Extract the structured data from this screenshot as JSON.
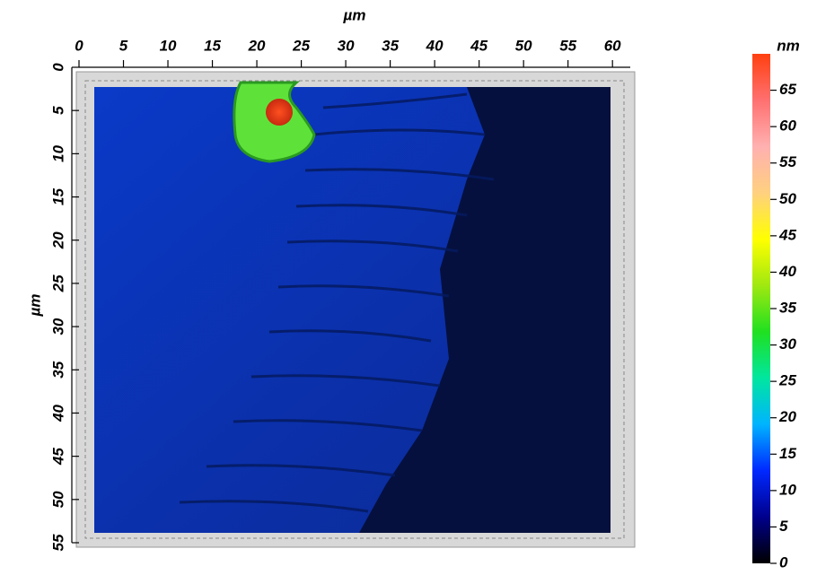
{
  "chart_data": {
    "type": "image",
    "xlabel": "µm",
    "ylabel": "µm",
    "xlim": [
      0,
      62
    ],
    "xticks": [
      0,
      5,
      10,
      15,
      20,
      25,
      30,
      35,
      40,
      45,
      50,
      55,
      60
    ],
    "ylim": [
      0,
      55
    ],
    "yticks": [
      0,
      5,
      10,
      15,
      20,
      25,
      30,
      35,
      40,
      45,
      50,
      55
    ],
    "colorbar": {
      "label": "nm",
      "lim": [
        0,
        70
      ],
      "ticks": [
        0,
        5,
        10,
        15,
        20,
        25,
        30,
        35,
        40,
        45,
        50,
        55,
        60,
        65
      ],
      "colors": [
        "#000000",
        "#00008c",
        "#0028ff",
        "#00b4ff",
        "#00e6a0",
        "#20e020",
        "#a0e810",
        "#ffff00",
        "#ffd080",
        "#ffb0b0",
        "#ff7070",
        "#ff4010"
      ]
    }
  }
}
